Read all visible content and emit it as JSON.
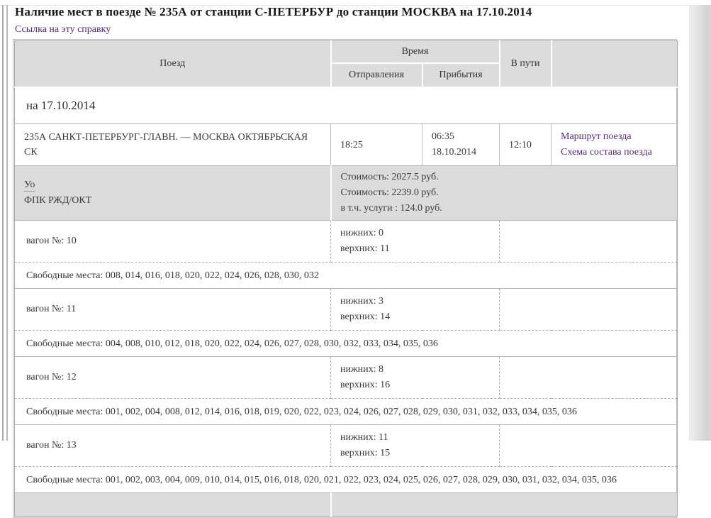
{
  "page": {
    "title": "Наличие мест в поезде № 235А от станции С-ПЕТЕРБУР до станции МОСКВА на 17.10.2014",
    "permalink": "Ссылка на эту справку"
  },
  "colors": {
    "header_bg": "#dcdcdc",
    "link": "#4f2d7c",
    "border_solid": "#b5b5b5",
    "border_dashed": "#aeaeae"
  },
  "table": {
    "col_train": "Поезд",
    "col_time": "Время",
    "col_departure": "Отправления",
    "col_arrival": "Прибытия",
    "col_duration": "В пути",
    "date_heading": "на 17.10.2014",
    "train": {
      "name": "235А САНКТ-ПЕТЕРБУРГ-ГЛАВН. — МОСКВА ОКТЯБРЬСКАЯ СК",
      "departure_time": "18:25",
      "arrival_time": "06:35",
      "arrival_date": "18.10.2014",
      "duration": "12:10",
      "route_link": "Маршрут поезда",
      "scheme_link": "Схема состава поезда"
    },
    "service_class": {
      "code": "Уо",
      "carrier": "ФПК РЖД/ОКТ",
      "price1": "Стоимость: 2027.5 руб.",
      "price2": "Стоимость: 2239.0 руб.",
      "price3": "в т.ч. услуги : 124.0 руб."
    },
    "wagons": [
      {
        "label": "вагон №: 10",
        "lower": "нижних: 0",
        "upper": "верхних: 11",
        "seats": "Свободные места: 008, 014, 016, 018, 020, 022, 024, 026, 028, 030, 032"
      },
      {
        "label": "вагон №: 11",
        "lower": "нижних: 3",
        "upper": "верхних: 14",
        "seats": "Свободные места: 004, 008, 010, 012, 018, 020, 022, 024, 026, 027, 028, 030, 032, 033, 034, 035, 036"
      },
      {
        "label": "вагон №: 12",
        "lower": "нижних: 8",
        "upper": "верхних: 16",
        "seats": "Свободные места: 001, 002, 004, 008, 012, 014, 016, 018, 019, 020, 022, 023, 024, 026, 027, 028, 029, 030, 031, 032, 033, 034, 035, 036"
      },
      {
        "label": "вагон №: 13",
        "lower": "нижних: 11",
        "upper": "верхних: 15",
        "seats": "Свободные места: 001, 002, 003, 004, 009, 010, 014, 015, 016, 018, 020, 021, 022, 023, 024, 025, 026, 027, 028, 029, 030, 031, 032, 034, 035, 036"
      }
    ]
  }
}
